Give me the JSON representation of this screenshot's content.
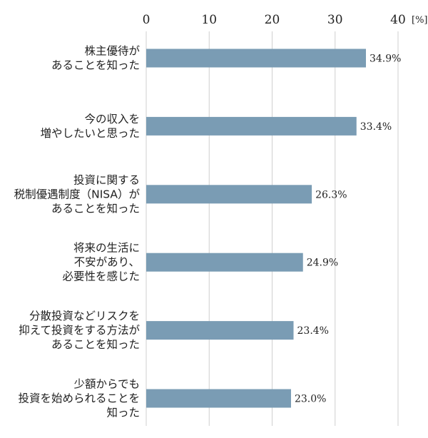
{
  "chart_data": {
    "type": "bar",
    "orientation": "horizontal",
    "categories": [
      [
        "株主優待が",
        "あることを知った"
      ],
      [
        "今の収入を",
        "増やしたいと思った"
      ],
      [
        "投資に関する",
        "税制優遇制度（NISA）が",
        "あることを知った"
      ],
      [
        "将来の生活に",
        "不安があり、",
        "必要性を感じた"
      ],
      [
        "分散投資などリスクを",
        "抑えて投資をする方法が",
        "あることを知った"
      ],
      [
        "少額からでも",
        "投資を始められることを",
        "知った"
      ]
    ],
    "values": [
      34.9,
      33.4,
      26.3,
      24.9,
      23.4,
      23.0
    ],
    "value_labels": [
      "34.9%",
      "33.4%",
      "26.3%",
      "24.9%",
      "23.4%",
      "23.0%"
    ],
    "x_ticks": [
      0,
      10,
      20,
      30,
      40
    ],
    "x_tick_labels": [
      "0",
      "10",
      "20",
      "30",
      "40"
    ],
    "x_unit": "[%]",
    "xlim": [
      0,
      40
    ],
    "bar_color": "#7a9cb4",
    "grid": true,
    "axis_position": "top"
  }
}
